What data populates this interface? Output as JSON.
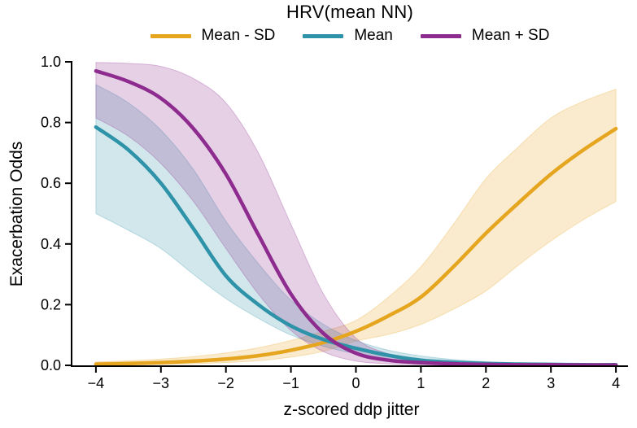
{
  "figure": {
    "legend": {
      "title": "HRV(mean NN)",
      "items": [
        {
          "label": "Mean - SD",
          "color": "#E6A51F"
        },
        {
          "label": "Mean",
          "color": "#2E93A8"
        },
        {
          "label": "Mean + SD",
          "color": "#8E2B8E"
        }
      ]
    },
    "x_axis": {
      "label": "z-scored ddp jitter",
      "tick_labels": [
        "−4",
        "−3",
        "−2",
        "−1",
        "0",
        "1",
        "2",
        "3",
        "4"
      ]
    },
    "y_axis": {
      "label": "Exacerbation Odds",
      "tick_labels": [
        "0.0",
        "0.2",
        "0.4",
        "0.6",
        "0.8",
        "1.0"
      ]
    }
  },
  "chart_data": {
    "type": "line",
    "title": "HRV(mean NN)",
    "xlabel": "z-scored ddp jitter",
    "ylabel": "Exacerbation Odds",
    "xlim": [
      -4.4,
      4.2
    ],
    "ylim": [
      0,
      1.0
    ],
    "x_ticks": [
      -4,
      -3,
      -2,
      -1,
      0,
      1,
      2,
      3,
      4
    ],
    "y_ticks": [
      0,
      0.2,
      0.4,
      0.6,
      0.8,
      1.0
    ],
    "grid": false,
    "legend_position": "top-center",
    "band_opacity": 0.22,
    "x": [
      -4,
      -3.5,
      -3,
      -2.5,
      -2,
      -1.5,
      -1,
      -0.5,
      0,
      0.5,
      1,
      1.5,
      2,
      2.5,
      3,
      3.5,
      4
    ],
    "series": [
      {
        "name": "Mean - SD",
        "color": "#E6A51F",
        "values": [
          0.004,
          0.006,
          0.009,
          0.014,
          0.021,
          0.032,
          0.05,
          0.075,
          0.112,
          0.163,
          0.225,
          0.325,
          0.435,
          0.535,
          0.63,
          0.71,
          0.78
        ],
        "band_lower": [
          0.001,
          0.002,
          0.003,
          0.005,
          0.009,
          0.015,
          0.027,
          0.046,
          0.08,
          0.102,
          0.135,
          0.185,
          0.245,
          0.33,
          0.41,
          0.48,
          0.54
        ],
        "band_upper": [
          0.011,
          0.015,
          0.021,
          0.029,
          0.041,
          0.058,
          0.082,
          0.112,
          0.148,
          0.225,
          0.325,
          0.465,
          0.615,
          0.72,
          0.815,
          0.87,
          0.91
        ]
      },
      {
        "name": "Mean",
        "color": "#2E93A8",
        "values": [
          0.785,
          0.71,
          0.6,
          0.45,
          0.295,
          0.2,
          0.13,
          0.085,
          0.056,
          0.033,
          0.017,
          0.01,
          0.006,
          0.004,
          0.003,
          0.002,
          0.002
        ],
        "band_lower": [
          0.5,
          0.445,
          0.385,
          0.3,
          0.22,
          0.155,
          0.1,
          0.063,
          0.038,
          0.021,
          0.011,
          0.006,
          0.003,
          0.002,
          0.001,
          0.001,
          0.0
        ],
        "band_upper": [
          0.925,
          0.865,
          0.775,
          0.645,
          0.475,
          0.335,
          0.215,
          0.135,
          0.082,
          0.05,
          0.031,
          0.019,
          0.012,
          0.008,
          0.006,
          0.004,
          0.003
        ]
      },
      {
        "name": "Mean + SD",
        "color": "#8E2B8E",
        "values": [
          0.97,
          0.935,
          0.88,
          0.78,
          0.63,
          0.43,
          0.235,
          0.105,
          0.04,
          0.017,
          0.009,
          0.005,
          0.003,
          0.002,
          0.002,
          0.001,
          0.001
        ],
        "band_lower": [
          0.815,
          0.755,
          0.665,
          0.54,
          0.385,
          0.235,
          0.115,
          0.045,
          0.014,
          0.005,
          0.002,
          0.001,
          0.001,
          0.0,
          0.0,
          0.0,
          0.0
        ],
        "band_upper": [
          0.998,
          0.995,
          0.985,
          0.945,
          0.865,
          0.7,
          0.465,
          0.235,
          0.09,
          0.038,
          0.019,
          0.011,
          0.007,
          0.005,
          0.003,
          0.002,
          0.002
        ]
      }
    ]
  }
}
